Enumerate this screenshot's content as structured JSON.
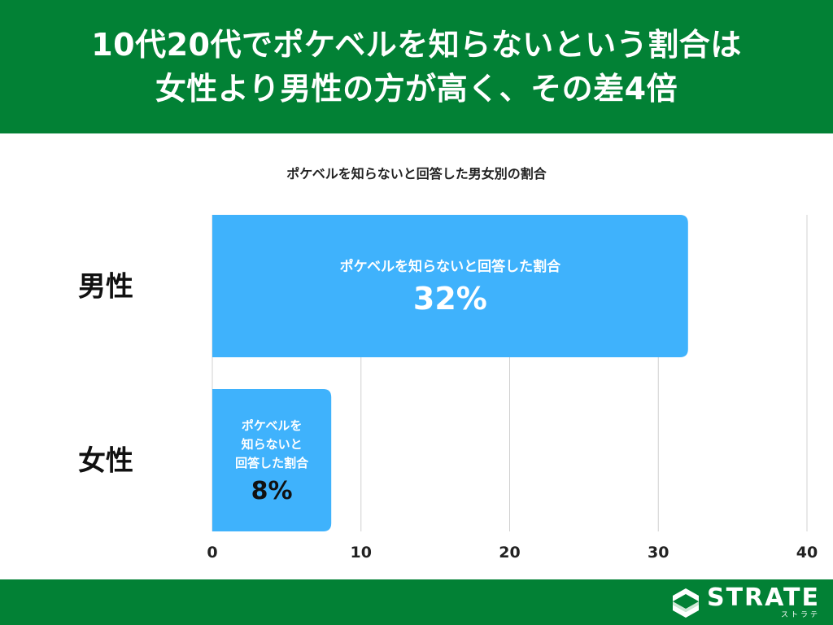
{
  "header": {
    "line1": "10代20代でポケベルを知らないという割合は",
    "line2": "女性より男性の方が高く、その差4倍"
  },
  "chart_data": {
    "type": "bar",
    "orientation": "horizontal",
    "title": "ポケベルを知らないと回答した男女別の割合",
    "categories": [
      "男性",
      "女性"
    ],
    "values": [
      32,
      8
    ],
    "bar_labels": [
      {
        "lines": [
          "ポケベルを知らないと回答した割合"
        ],
        "value": "32%"
      },
      {
        "lines": [
          "ポケベルを",
          "知らないと",
          "回答した割合"
        ],
        "value": "8%"
      }
    ],
    "xlim": [
      0,
      40
    ],
    "xticks": [
      0,
      10,
      20,
      30,
      40
    ],
    "grid": true,
    "bar_color": "#3FB2FC"
  },
  "footer": {
    "brand": "STRATE",
    "brand_sub": "ストラテ"
  }
}
